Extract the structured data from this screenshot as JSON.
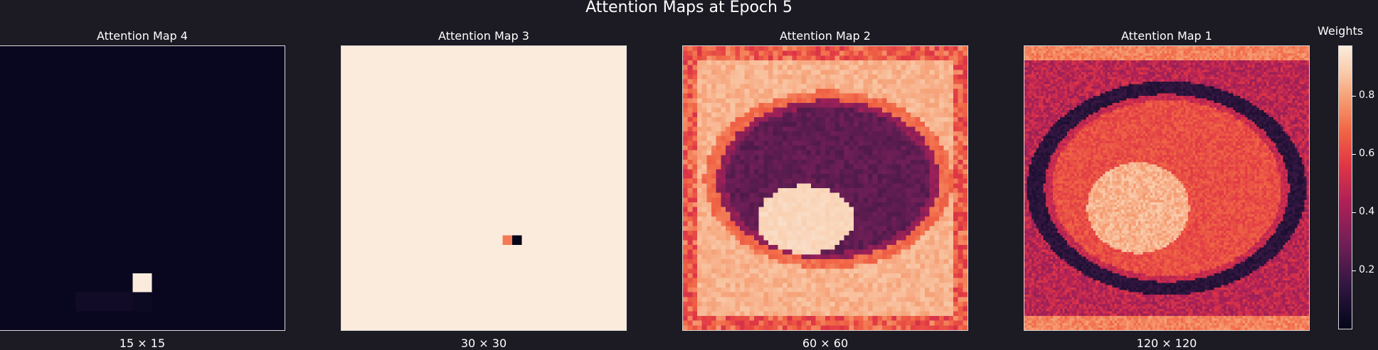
{
  "figure": {
    "title": "Attention Maps at Epoch 5",
    "colormap": "rocket",
    "background": "#1c1b24"
  },
  "colorbar": {
    "label": "Weights",
    "vmin": 0.0,
    "vmax": 0.97,
    "ticks": [
      "0.2",
      "0.4",
      "0.6",
      "0.8"
    ]
  },
  "chart_data": [
    {
      "type": "heatmap",
      "title": "Attention Map 4",
      "xlabel": "15 × 15",
      "grid_size": 15,
      "description_values": {
        "background": 0.02,
        "hot_cell": {
          "row": 12,
          "col": 7,
          "value": 0.97
        },
        "dim_cells": [
          [
            13,
            5,
            0.05
          ],
          [
            13,
            6,
            0.05
          ],
          [
            13,
            4,
            0.05
          ],
          [
            13,
            7,
            0.03
          ]
        ]
      }
    },
    {
      "type": "heatmap",
      "title": "Attention Map 3",
      "xlabel": "30 × 30",
      "grid_size": 30,
      "description_values": {
        "background": 0.97,
        "cells": [
          [
            20,
            17,
            0.72
          ],
          [
            20,
            18,
            0.0
          ]
        ]
      }
    },
    {
      "type": "heatmap",
      "title": "Attention Map 2",
      "xlabel": "60 × 60",
      "grid_size": 60
    },
    {
      "type": "heatmap",
      "title": "Attention Map 1",
      "xlabel": "120 × 120",
      "grid_size": 120
    }
  ]
}
